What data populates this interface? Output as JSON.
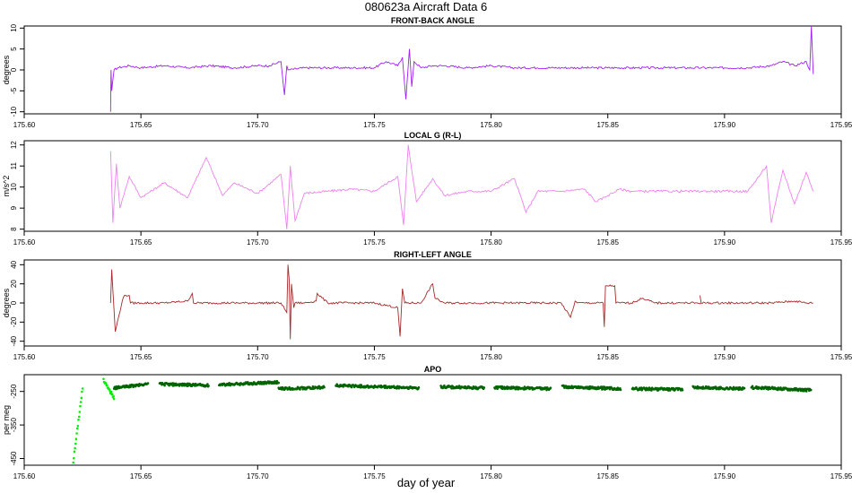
{
  "header": {
    "title": "080623a    Aircraft Data 6"
  },
  "footer": {
    "xlabel": "day of year"
  },
  "chart_data": [
    {
      "type": "line",
      "title": "FRONT-BACK ANGLE",
      "ylabel": "degrees",
      "color": "#a020f0",
      "xlim": [
        175.6,
        175.95
      ],
      "ylim": [
        -10.5,
        10.5
      ],
      "xticks": [
        "175.60",
        "175.65",
        "175.70",
        "175.75",
        "175.80",
        "175.85",
        "175.90",
        "175.95"
      ],
      "yticks": [
        "-10",
        "-5",
        "0",
        "5",
        "10"
      ],
      "series": [
        {
          "x": [
            175.637,
            175.6372,
            175.6375,
            175.6385,
            175.64,
            175.645,
            175.65,
            175.66,
            175.67,
            175.68,
            175.69,
            175.7,
            175.705,
            175.71,
            175.7115,
            175.7125,
            175.713,
            175.72,
            175.73,
            175.74,
            175.75,
            175.755,
            175.76,
            175.762,
            175.7635,
            175.765,
            175.766,
            175.767,
            175.77,
            175.775,
            175.78,
            175.79,
            175.8,
            175.81,
            175.82,
            175.83,
            175.84,
            175.85,
            175.86,
            175.87,
            175.88,
            175.89,
            175.9,
            175.91,
            175.92,
            175.925,
            175.93,
            175.935,
            175.9365,
            175.9372,
            175.938
          ],
          "y": [
            -10,
            0,
            -5,
            0,
            0.5,
            1,
            0.5,
            1,
            0.5,
            1,
            0.5,
            1,
            1,
            2,
            -6,
            1,
            0,
            0.5,
            0.5,
            0.5,
            0.5,
            2,
            1,
            3,
            -7,
            5,
            -4,
            2,
            0.5,
            1,
            1,
            0.5,
            1,
            0.5,
            0.5,
            0.5,
            0.5,
            0.5,
            0.5,
            0.5,
            0.5,
            0.5,
            0.5,
            0.5,
            1,
            2,
            1,
            2,
            0,
            10.5,
            -1
          ]
        }
      ]
    },
    {
      "type": "line",
      "title": "LOCAL G (R-L)",
      "ylabel": "m/s^2",
      "color": "#ee82ee",
      "xlim": [
        175.6,
        175.95
      ],
      "ylim": [
        7.9,
        12.2
      ],
      "xticks": [
        "175.60",
        "175.65",
        "175.70",
        "175.75",
        "175.80",
        "175.85",
        "175.90",
        "175.95"
      ],
      "yticks": [
        "8",
        "9",
        "10",
        "11",
        "12"
      ],
      "series": [
        {
          "x": [
            175.637,
            175.638,
            175.6395,
            175.641,
            175.645,
            175.65,
            175.66,
            175.67,
            175.678,
            175.685,
            175.69,
            175.7,
            175.71,
            175.7125,
            175.714,
            175.716,
            175.72,
            175.73,
            175.74,
            175.75,
            175.76,
            175.7625,
            175.7645,
            175.768,
            175.775,
            175.78,
            175.79,
            175.8,
            175.81,
            175.815,
            175.82,
            175.83,
            175.84,
            175.845,
            175.85,
            175.855,
            175.86,
            175.87,
            175.88,
            175.89,
            175.9,
            175.91,
            175.918,
            175.92,
            175.925,
            175.93,
            175.935,
            175.938
          ],
          "y": [
            11.7,
            8.3,
            11.1,
            9.0,
            10.5,
            9.5,
            10.2,
            9.5,
            11.4,
            9.6,
            10.2,
            9.7,
            10.6,
            8.0,
            11.0,
            8.4,
            9.7,
            9.8,
            9.9,
            9.8,
            10.5,
            8.2,
            12.0,
            9.3,
            10.4,
            9.6,
            9.8,
            9.8,
            10.4,
            8.8,
            9.8,
            9.8,
            9.9,
            9.3,
            9.6,
            9.9,
            9.8,
            9.8,
            9.8,
            9.8,
            9.8,
            9.8,
            11.0,
            8.3,
            10.8,
            9.2,
            10.7,
            9.8
          ]
        }
      ]
    },
    {
      "type": "line",
      "title": "RIGHT-LEFT ANGLE",
      "ylabel": "degrees",
      "color": "#a52a2a",
      "xlim": [
        175.6,
        175.95
      ],
      "ylim": [
        -45,
        45
      ],
      "xticks": [
        "175.60",
        "175.65",
        "175.70",
        "175.75",
        "175.80",
        "175.85",
        "175.90",
        "175.95"
      ],
      "yticks": [
        "-40",
        "-20",
        "0",
        "20",
        "40"
      ],
      "series": [
        {
          "x": [
            175.637,
            175.6375,
            175.639,
            175.642,
            175.643,
            175.645,
            175.6455,
            175.65,
            175.66,
            175.67,
            175.672,
            175.6725,
            175.68,
            175.69,
            175.7,
            175.71,
            175.7125,
            175.713,
            175.7135,
            175.714,
            175.7145,
            175.7155,
            175.716,
            175.72,
            175.725,
            175.7255,
            175.73,
            175.74,
            175.75,
            175.76,
            175.761,
            175.762,
            175.763,
            175.77,
            175.775,
            175.776,
            175.78,
            175.79,
            175.8,
            175.81,
            175.82,
            175.83,
            175.834,
            175.836,
            175.837,
            175.84,
            175.848,
            175.8485,
            175.849,
            175.853,
            175.8535,
            175.86,
            175.865,
            175.87,
            175.88,
            175.89,
            175.8895,
            175.89,
            175.9,
            175.91,
            175.92,
            175.93,
            175.935,
            175.938
          ],
          "y": [
            0,
            35,
            -30,
            2,
            8,
            8,
            0,
            0,
            0,
            2,
            10,
            0,
            0,
            0,
            0,
            0,
            -10,
            40,
            25,
            -38,
            20,
            -5,
            0,
            0,
            2,
            10,
            0,
            0,
            0,
            -5,
            -35,
            15,
            0,
            0,
            20,
            5,
            0,
            0,
            0,
            0,
            0,
            0,
            -15,
            2,
            0,
            0,
            0,
            -25,
            18,
            18,
            0,
            0,
            5,
            0,
            0,
            0,
            8,
            0,
            0,
            0,
            0,
            2,
            0,
            0
          ]
        }
      ]
    },
    {
      "type": "scatter",
      "title": "APO",
      "ylabel": "per meg",
      "color": "#006400",
      "highlight_color": "#00ee00",
      "xlim": [
        175.6,
        175.95
      ],
      "ylim": [
        -470,
        -200
      ],
      "xticks": [
        "175.60",
        "175.65",
        "175.70",
        "175.75",
        "175.80",
        "175.85",
        "175.90",
        "175.95"
      ],
      "yticks": [
        "-450",
        "-350",
        "-250"
      ],
      "segments": [
        {
          "x": [
            175.621,
            175.625
          ],
          "y": [
            -460,
            -240
          ],
          "color": "#00ee00"
        },
        {
          "x": [
            175.634,
            175.6385
          ],
          "y": [
            -215,
            -270
          ],
          "color": "#00ee00"
        },
        {
          "x": [
            175.6385,
            175.653
          ],
          "y": [
            -240,
            -228
          ],
          "color": "#006400"
        },
        {
          "x": [
            175.658,
            175.679
          ],
          "y": [
            -228,
            -232
          ],
          "color": "#006400"
        },
        {
          "x": [
            175.6835,
            175.709
          ],
          "y": [
            -230,
            -222
          ],
          "color": "#006400"
        },
        {
          "x": [
            175.709,
            175.7285
          ],
          "y": [
            -242,
            -238
          ],
          "color": "#006400"
        },
        {
          "x": [
            175.7335,
            175.769
          ],
          "y": [
            -232,
            -240
          ],
          "color": "#006400"
        },
        {
          "x": [
            175.7785,
            175.797
          ],
          "y": [
            -236,
            -240
          ],
          "color": "#006400"
        },
        {
          "x": [
            175.8015,
            175.8255
          ],
          "y": [
            -238,
            -242
          ],
          "color": "#006400"
        },
        {
          "x": [
            175.8305,
            175.8555
          ],
          "y": [
            -236,
            -242
          ],
          "color": "#006400"
        },
        {
          "x": [
            175.8605,
            175.882
          ],
          "y": [
            -242,
            -244
          ],
          "color": "#006400"
        },
        {
          "x": [
            175.8865,
            175.9085
          ],
          "y": [
            -238,
            -242
          ],
          "color": "#006400"
        },
        {
          "x": [
            175.9115,
            175.937
          ],
          "y": [
            -238,
            -246
          ],
          "color": "#006400"
        }
      ]
    }
  ]
}
